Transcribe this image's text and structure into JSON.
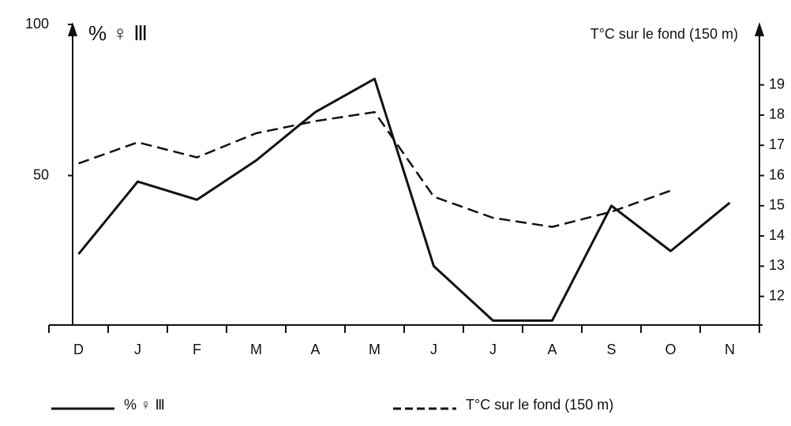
{
  "chart_data": {
    "type": "line",
    "y_label": "% ♀ Ⅲ",
    "y2_label": "T°C sur le fond (150 m)",
    "categories": [
      "D",
      "J",
      "F",
      "M",
      "A",
      "M",
      "J",
      "J",
      "A",
      "S",
      "O",
      "N"
    ],
    "series": [
      {
        "name": "% ♀ Ⅲ",
        "color": "#111111",
        "dash": "solid",
        "values": [
          24,
          48,
          42,
          55,
          71,
          82,
          20,
          2,
          2,
          40,
          25,
          41
        ]
      },
      {
        "name": "T°C sur le fond (150 m)",
        "color": "#111111",
        "dash": "dashed",
        "axis": "y2",
        "values": [
          16.4,
          17.1,
          16.6,
          17.4,
          17.8,
          18.1,
          15.3,
          14.6,
          14.3,
          14.8,
          15.5,
          null
        ]
      }
    ],
    "ylim": [
      0,
      100
    ],
    "yticks": [
      50,
      100
    ],
    "y2lim": [
      11,
      21
    ],
    "y2ticks": [
      12,
      13,
      14,
      15,
      16,
      17,
      18,
      19
    ],
    "grid": false
  }
}
